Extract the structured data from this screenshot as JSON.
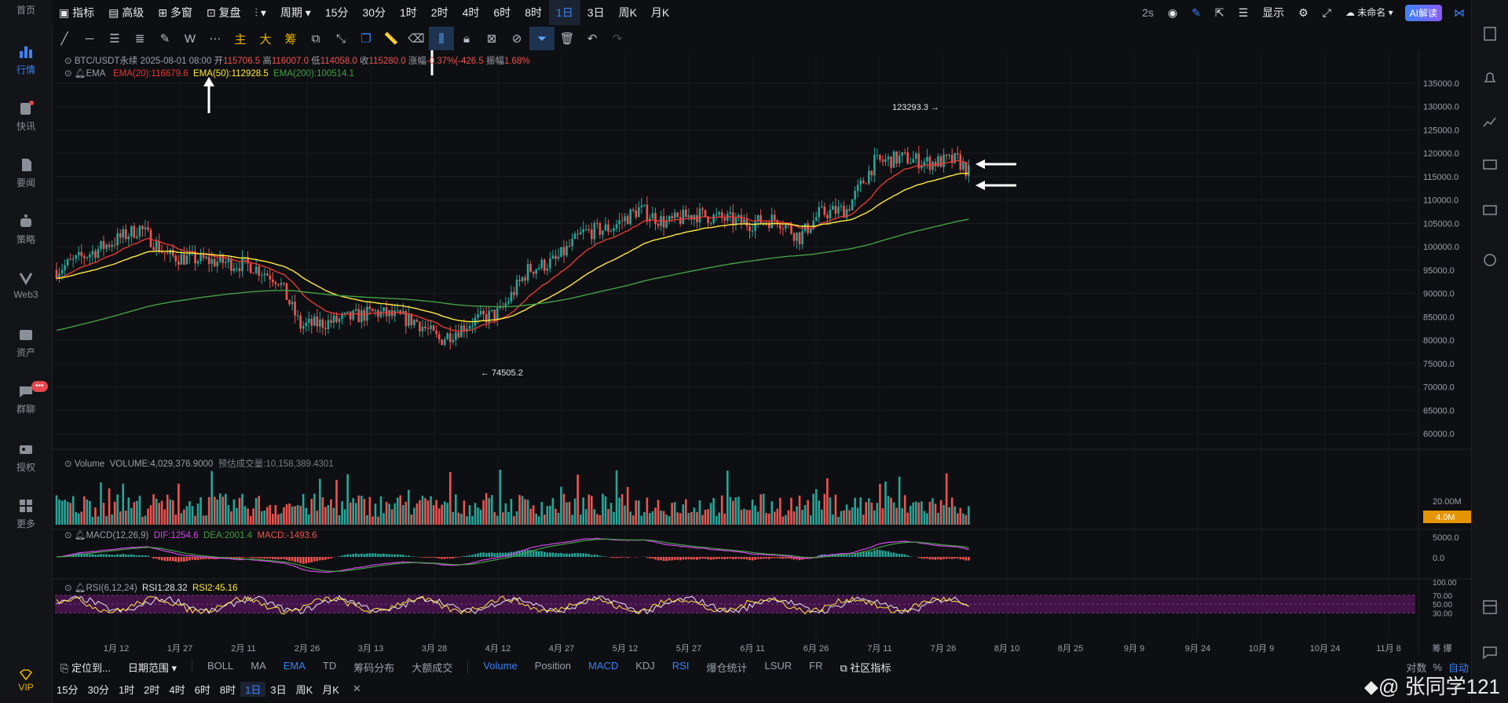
{
  "sidebar": {
    "items": [
      {
        "label": "首页",
        "icon": "home-icon"
      },
      {
        "label": "行情",
        "icon": "chart-bars-icon",
        "active": true
      },
      {
        "label": "快讯",
        "icon": "news-icon"
      },
      {
        "label": "要闻",
        "icon": "document-icon"
      },
      {
        "label": "策略",
        "icon": "robot-icon"
      },
      {
        "label": "Web3",
        "icon": "web3-icon"
      },
      {
        "label": "资产",
        "icon": "wallet-icon"
      },
      {
        "label": "群聊",
        "icon": "chat-icon"
      },
      {
        "label": "授权",
        "icon": "key-icon"
      },
      {
        "label": "更多",
        "icon": "grid-icon"
      }
    ],
    "chat_badge": "•••",
    "vip_label": "VIP"
  },
  "topbar": {
    "indicator": "指标",
    "advanced": "高级",
    "multi_window": "多窗",
    "replay": "复盘",
    "period": "周期",
    "intervals": [
      "15分",
      "30分",
      "1时",
      "2时",
      "4时",
      "6时",
      "8时",
      "1日",
      "3日",
      "周K",
      "月K"
    ],
    "selected_interval": "1日",
    "refresh": "2s",
    "display": "显示",
    "unnamed": "未命名",
    "ai_button": "AI解读"
  },
  "chart": {
    "symbol": "BTC/USDT永续",
    "datetime": "2025-08-01 08:00",
    "open_label": "开",
    "open": "115706.5",
    "high_label": "高",
    "high": "116007.0",
    "low_label": "低",
    "low": "114058.0",
    "close_label": "收",
    "close": "115280.0",
    "change_label": "涨幅",
    "change": "-0.37%(-426.5",
    "amp_label": "振幅",
    "amp": "1.68%",
    "ema_label": "EMA",
    "ema20": "EMA(20):116679.6",
    "ema50": "EMA(50):112928.5",
    "ema200": "EMA(200):100514.1",
    "max_label": "123293.3",
    "min_label": "74505.2",
    "volume_title": "Volume",
    "volume_value": "VOLUME:4,029,376.9000",
    "volume_est": "预估成交量:10,158,389.4301",
    "macd_title": "MACD(12,26,9)",
    "dif": "DIF:1254.6",
    "dea": "DEA:2001.4",
    "macd_val": "MACD:-1493.6",
    "rsi_title": "RSI(6,12,24)",
    "rsi1": "RSI1:28.32",
    "rsi2": "RSI2:45.16",
    "price_axis": [
      "135000.0",
      "130000.0",
      "125000.0",
      "120000.0",
      "115000.0",
      "110000.0",
      "105000.0",
      "100000.0",
      "95000.0",
      "90000.0",
      "85000.0",
      "80000.0",
      "75000.0",
      "70000.0",
      "65000.0",
      "60000.0"
    ],
    "vol_axis": [
      "20.00M",
      "4.0M"
    ],
    "macd_axis": [
      "5000.0",
      "0.0"
    ],
    "rsi_axis": [
      "100.00",
      "70.00",
      "50.00",
      "30.00"
    ],
    "date_axis": [
      "1月 12",
      "1月 27",
      "2月 11",
      "2月 26",
      "3月 13",
      "3月 28",
      "4月 12",
      "4月 27",
      "5月 12",
      "5月 27",
      "6月 11",
      "6月 26",
      "7月 11",
      "7月 26",
      "8月 10",
      "8月 25",
      "9月 9",
      "9月 24",
      "10月 9",
      "10月 24",
      "11月 8"
    ],
    "axis_corner": "筹 爆"
  },
  "bottom_bar": {
    "locate": "定位到...",
    "date_range": "日期范围",
    "indicators_main": [
      "BOLL",
      "MA",
      "EMA",
      "TD",
      "筹码分布",
      "大额成交"
    ],
    "active_main": "EMA",
    "indicators_sub": [
      "Volume",
      "Position",
      "MACD",
      "KDJ",
      "RSI",
      "爆仓统计",
      "LSUR",
      "FR"
    ],
    "active_sub": [
      "Volume",
      "MACD",
      "RSI"
    ],
    "community": "社区指标",
    "log": "对数",
    "percent": "%",
    "auto": "自动"
  },
  "bottom_intervals": [
    "15分",
    "30分",
    "1时",
    "2时",
    "4时",
    "6时",
    "8时",
    "1日",
    "3日",
    "周K",
    "月K"
  ],
  "watermark": "@ 张同学121",
  "colors": {
    "up": "#26a69a",
    "down": "#ef5350",
    "ema20": "#e53935",
    "ema50": "#ffeb3b",
    "ema200": "#43a047",
    "accent": "#3b82f6",
    "rsi_band": "#4a1450"
  }
}
